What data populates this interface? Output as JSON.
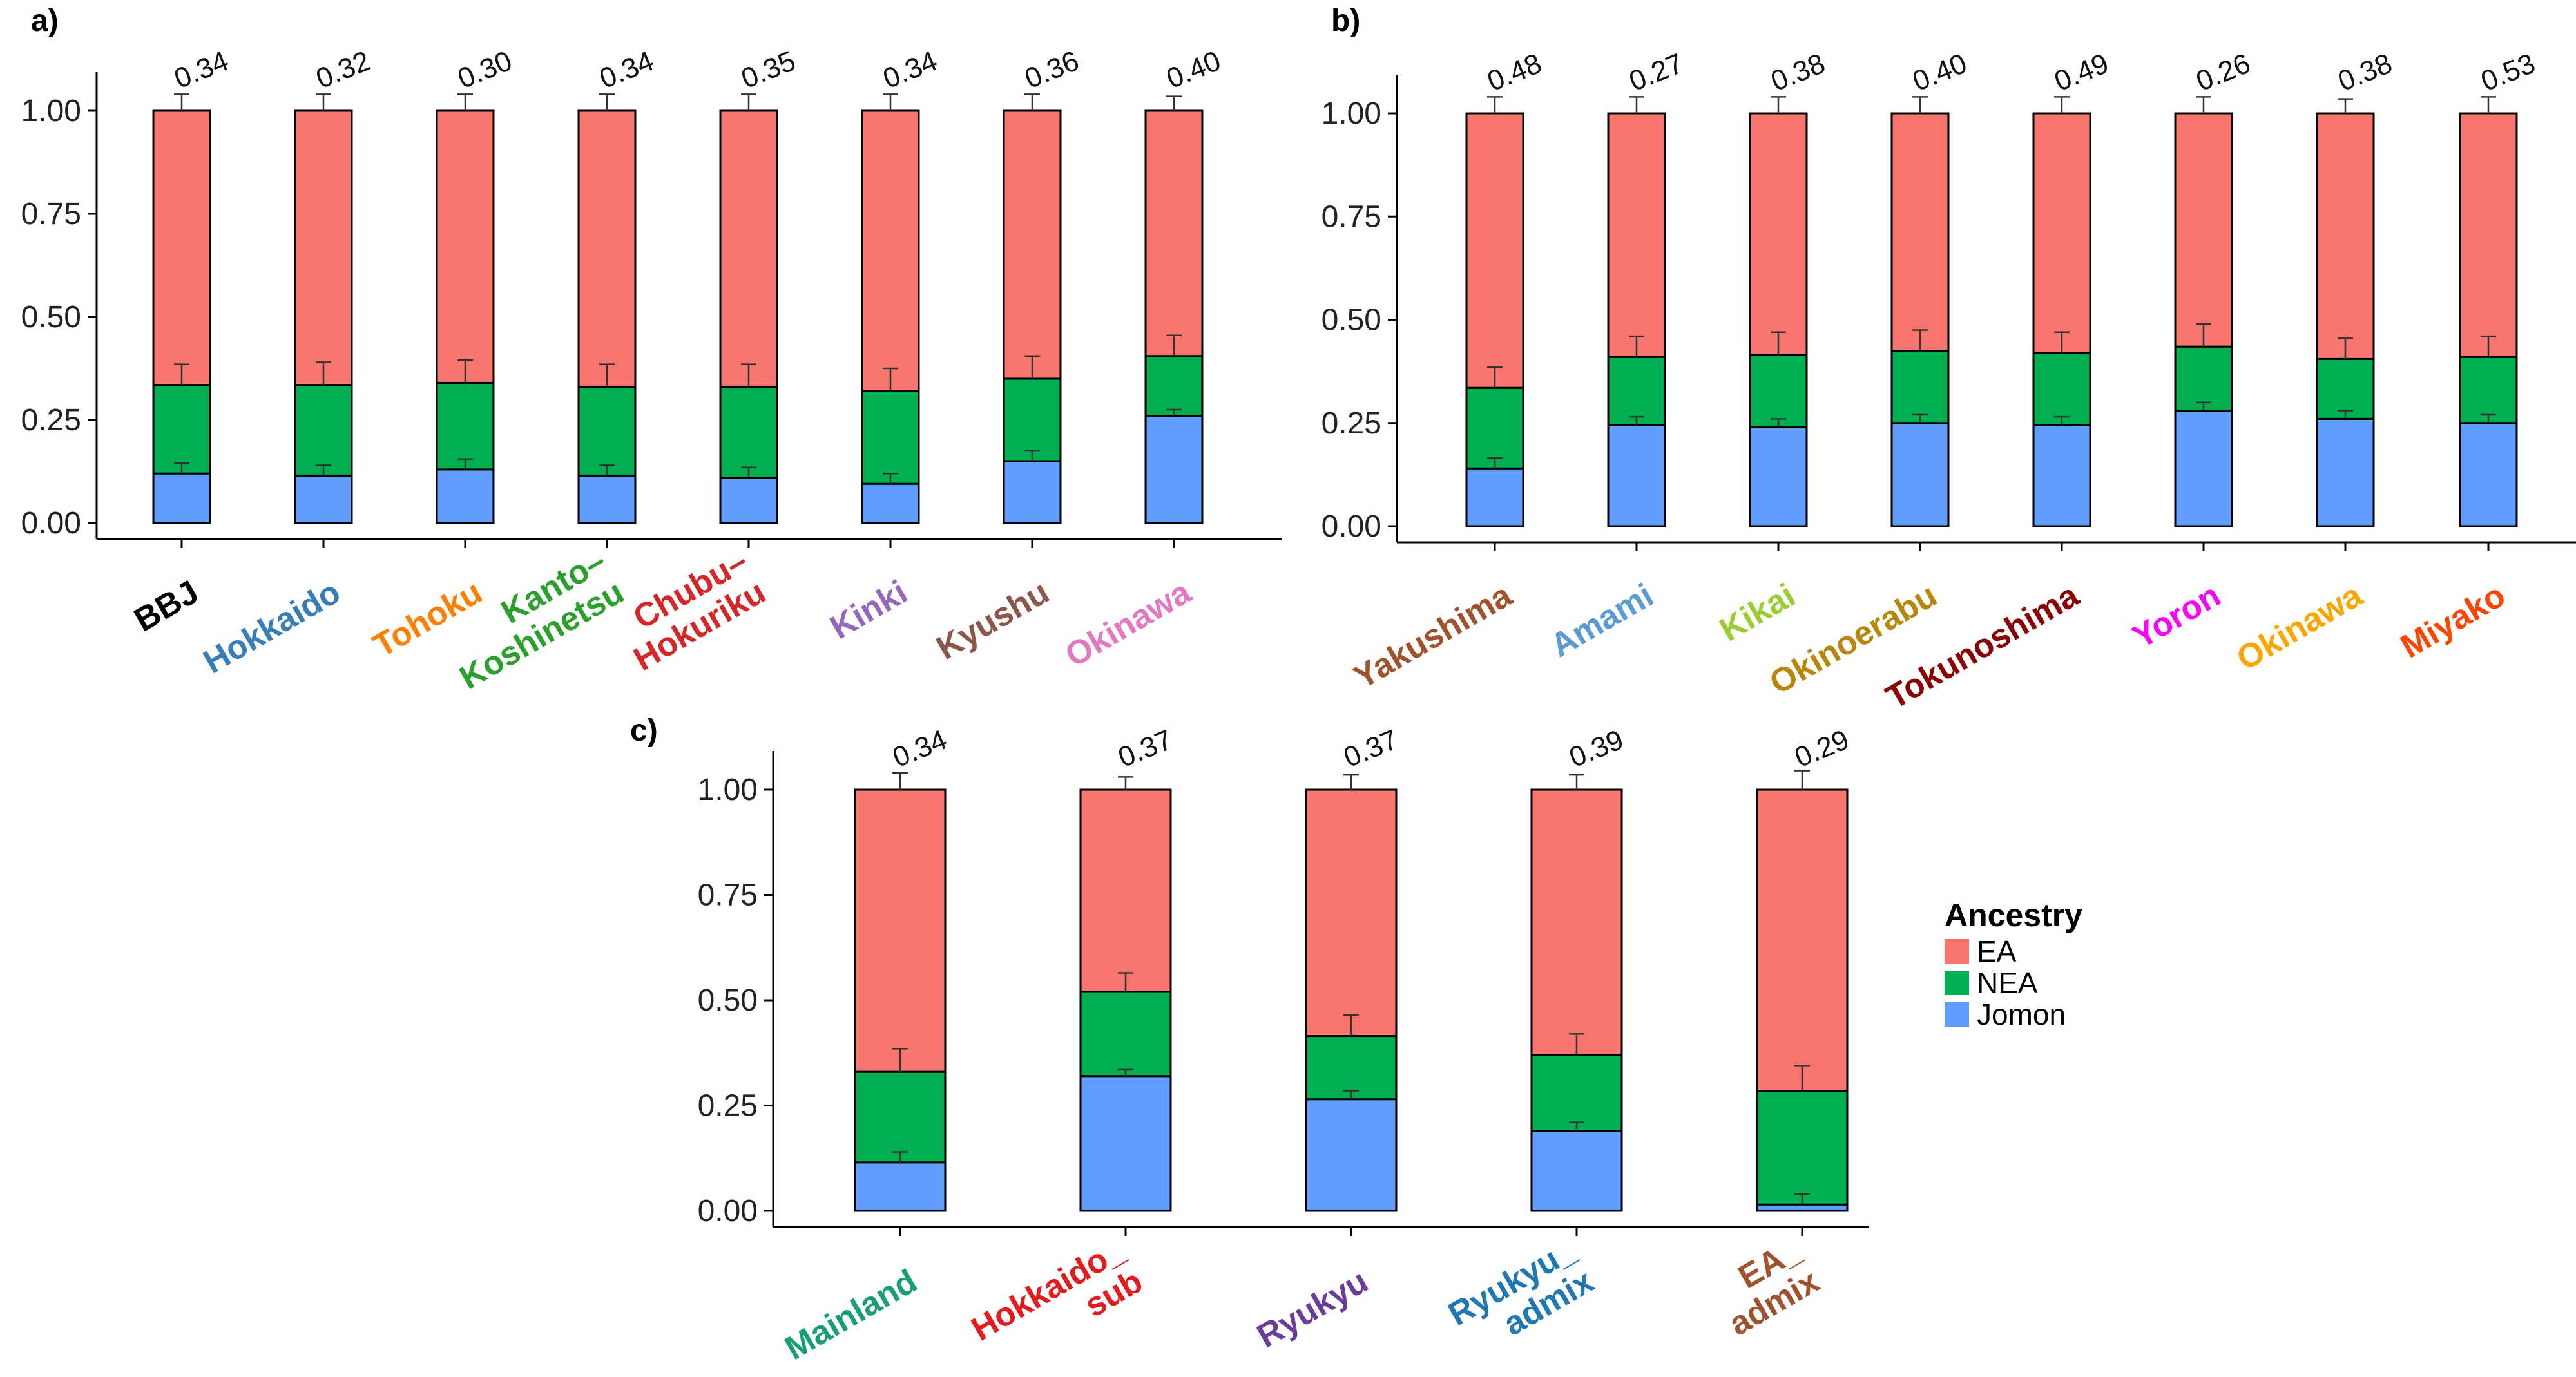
{
  "chart_data": [
    {
      "type": "bar",
      "panel_label": "a)",
      "categories": [
        "BBJ",
        "Hokkaido",
        "Tohoku",
        "Kanto–\nKoshinetsu",
        "Chubu–\nHokuriku",
        "Kinki",
        "Kyushu",
        "Okinawa"
      ],
      "category_colors": [
        "#000000",
        "#377EB8",
        "#FF7F00",
        "#2CA02C",
        "#D62728",
        "#9467BD",
        "#8C564B",
        "#E377C2"
      ],
      "top_labels": [
        "0.34",
        "0.32",
        "0.30",
        "0.34",
        "0.35",
        "0.34",
        "0.36",
        "0.40"
      ],
      "series": [
        {
          "name": "Jomon",
          "values": [
            0.12,
            0.115,
            0.13,
            0.115,
            0.11,
            0.095,
            0.15,
            0.26
          ]
        },
        {
          "name": "NEA",
          "values": [
            0.215,
            0.22,
            0.21,
            0.215,
            0.22,
            0.225,
            0.2,
            0.145
          ]
        },
        {
          "name": "EA",
          "values": [
            0.665,
            0.665,
            0.66,
            0.67,
            0.67,
            0.68,
            0.65,
            0.595
          ]
        }
      ],
      "error_bars": {
        "Jomon": [
          0.145,
          0.14,
          0.155,
          0.14,
          0.135,
          0.12,
          0.175,
          0.275
        ],
        "NEA": [
          0.385,
          0.39,
          0.395,
          0.385,
          0.385,
          0.375,
          0.405,
          0.455
        ],
        "EA": [
          1.04,
          1.04,
          1.04,
          1.04,
          1.04,
          1.04,
          1.04,
          1.035
        ]
      },
      "yticks": [
        "0.00",
        "0.25",
        "0.50",
        "0.75",
        "1.00"
      ],
      "ylim": [
        0,
        1.0
      ]
    },
    {
      "type": "bar",
      "panel_label": "b)",
      "categories": [
        "Yakushima",
        "Amami",
        "Kikai",
        "Okinoerabu",
        "Tokunoshima",
        "Yoron",
        "Okinawa",
        "Miyako"
      ],
      "category_colors": [
        "#A0522D",
        "#5B9BD5",
        "#9ACD32",
        "#B8860B",
        "#8B0000",
        "#FF00FF",
        "#FFA500",
        "#FF4500"
      ],
      "top_labels": [
        "0.48",
        "0.27",
        "0.38",
        "0.40",
        "0.49",
        "0.26",
        "0.38",
        "0.53"
      ],
      "series": [
        {
          "name": "Jomon",
          "values": [
            0.14,
            0.245,
            0.24,
            0.25,
            0.245,
            0.28,
            0.26,
            0.25
          ]
        },
        {
          "name": "NEA",
          "values": [
            0.195,
            0.165,
            0.175,
            0.175,
            0.175,
            0.155,
            0.145,
            0.16
          ]
        },
        {
          "name": "EA",
          "values": [
            0.665,
            0.59,
            0.585,
            0.575,
            0.58,
            0.565,
            0.595,
            0.59
          ]
        }
      ],
      "error_bars": {
        "Jomon": [
          0.165,
          0.265,
          0.26,
          0.27,
          0.265,
          0.3,
          0.28,
          0.27
        ],
        "NEA": [
          0.385,
          0.46,
          0.47,
          0.475,
          0.47,
          0.49,
          0.455,
          0.46
        ],
        "EA": [
          1.04,
          1.04,
          1.04,
          1.04,
          1.04,
          1.04,
          1.035,
          1.04
        ]
      },
      "yticks": [
        "0.00",
        "0.25",
        "0.50",
        "0.75",
        "1.00"
      ],
      "ylim": [
        0,
        1.0
      ]
    },
    {
      "type": "bar",
      "panel_label": "c)",
      "categories": [
        "Mainland",
        "Hokkaido_\nsub",
        "Ryukyu",
        "Ryukyu_\nadmix",
        "EA_\nadmix"
      ],
      "category_colors": [
        "#1A9E77",
        "#E41A1C",
        "#6A3D9A",
        "#1F78B4",
        "#A0522D"
      ],
      "top_labels": [
        "0.34",
        "0.37",
        "0.37",
        "0.39",
        "0.29"
      ],
      "series": [
        {
          "name": "Jomon",
          "values": [
            0.115,
            0.32,
            0.265,
            0.19,
            0.015
          ]
        },
        {
          "name": "NEA",
          "values": [
            0.215,
            0.2,
            0.15,
            0.18,
            0.27
          ]
        },
        {
          "name": "EA",
          "values": [
            0.67,
            0.48,
            0.585,
            0.63,
            0.715
          ]
        }
      ],
      "error_bars": {
        "Jomon": [
          0.14,
          0.335,
          0.285,
          0.21,
          0.04
        ],
        "NEA": [
          0.385,
          0.565,
          0.465,
          0.42,
          0.345
        ],
        "EA": [
          1.04,
          1.03,
          1.035,
          1.035,
          1.045
        ]
      },
      "yticks": [
        "0.00",
        "0.25",
        "0.50",
        "0.75",
        "1.00"
      ],
      "ylim": [
        0,
        1.0
      ]
    }
  ],
  "legend": {
    "title": "Ancestry",
    "items": [
      {
        "name": "EA",
        "color": "#F8766D"
      },
      {
        "name": "NEA",
        "color": "#00B050"
      },
      {
        "name": "Jomon",
        "color": "#619CFF"
      }
    ]
  }
}
